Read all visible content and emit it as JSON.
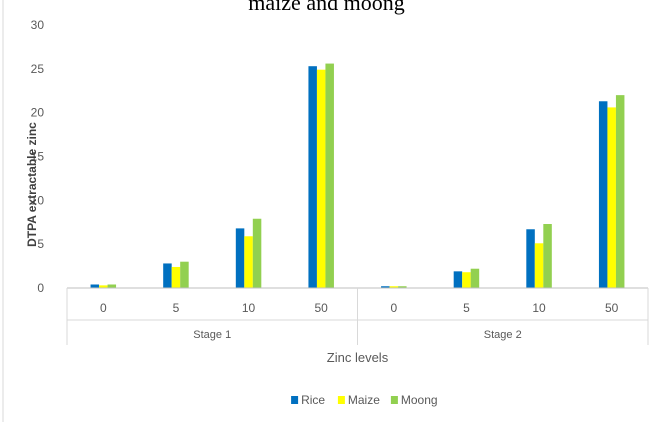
{
  "chart_data": {
    "type": "bar",
    "title": "maize and moong",
    "xlabel": "Zinc levels",
    "ylabel": "DTPA extractable zinc",
    "ylim": [
      0,
      30
    ],
    "yticks": [
      0,
      5,
      10,
      15,
      20,
      25,
      30
    ],
    "categories": [
      "0",
      "5",
      "10",
      "50",
      "0",
      "5",
      "10",
      "50"
    ],
    "groups": [
      {
        "label": "Stage 1",
        "categories": [
          "0",
          "5",
          "10",
          "50"
        ]
      },
      {
        "label": "Stage 2",
        "categories": [
          "0",
          "5",
          "10",
          "50"
        ]
      }
    ],
    "series": [
      {
        "name": "Rice",
        "color": "#0070C0",
        "values": [
          0.4,
          2.8,
          6.8,
          25.3,
          0.2,
          1.9,
          6.7,
          21.3
        ]
      },
      {
        "name": "Maize",
        "color": "#FFFF00",
        "values": [
          0.3,
          2.4,
          5.9,
          24.9,
          0.2,
          1.8,
          5.1,
          20.6
        ]
      },
      {
        "name": "Moong",
        "color": "#92D050",
        "values": [
          0.4,
          3.0,
          7.9,
          25.6,
          0.2,
          2.2,
          7.3,
          22.0
        ]
      }
    ],
    "legend_position": "bottom",
    "grid": false
  }
}
